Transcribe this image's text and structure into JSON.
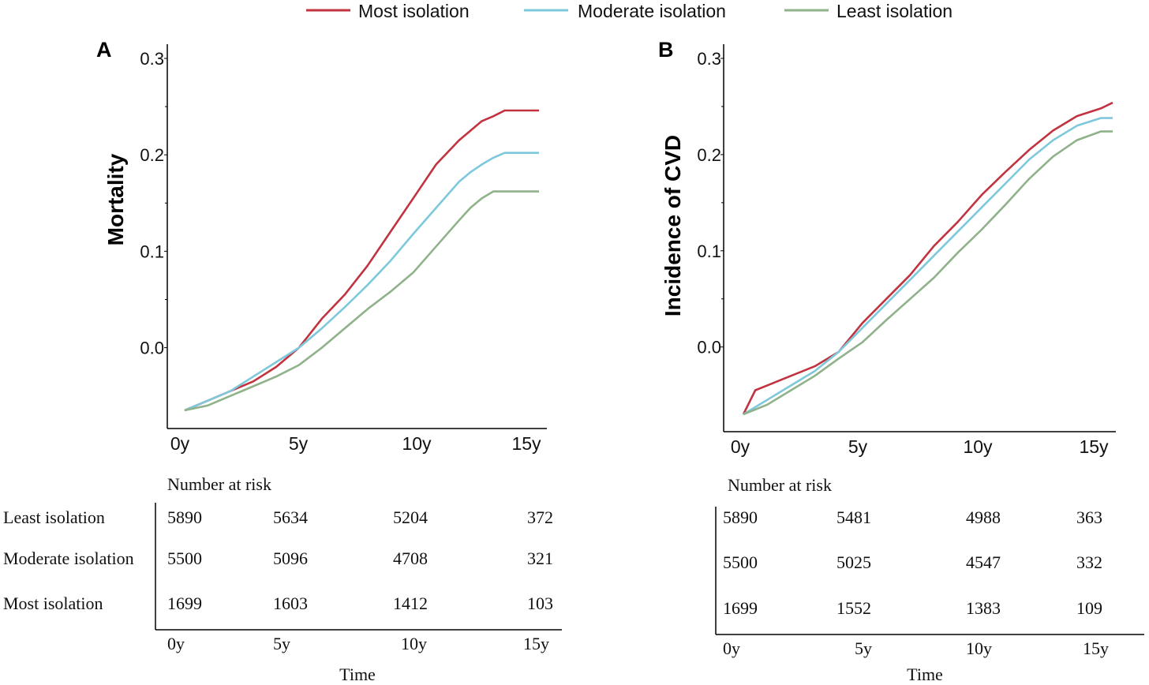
{
  "legend": {
    "items": [
      {
        "label": "Most isolation",
        "color": "#c0333f"
      },
      {
        "label": "Moderate isolation",
        "color": "#7ec8dc"
      },
      {
        "label": "Least isolation",
        "color": "#8fb28a"
      }
    ]
  },
  "chart_data": [
    {
      "type": "line",
      "panel_label": "A",
      "title": "",
      "xlabel": "",
      "ylabel": "Mortality",
      "x_tick_labels": [
        "0y",
        "5y",
        "10y",
        "15y"
      ],
      "y_tick_labels": [
        "0.0",
        "0.1",
        "0.2",
        "0.3"
      ],
      "xlim": [
        0,
        15.5
      ],
      "ylim": [
        -0.065,
        0.3
      ],
      "series": [
        {
          "name": "Most isolation",
          "color": "#c0333f",
          "x": [
            0,
            1,
            2,
            3,
            4,
            5,
            6,
            7,
            8,
            9,
            10,
            11,
            12,
            12.5,
            13,
            13.5,
            14,
            15.5
          ],
          "y": [
            -0.065,
            -0.055,
            -0.045,
            -0.035,
            -0.02,
            0.0,
            0.03,
            0.055,
            0.085,
            0.12,
            0.155,
            0.19,
            0.215,
            0.225,
            0.235,
            0.24,
            0.246,
            0.246
          ]
        },
        {
          "name": "Moderate isolation",
          "color": "#7ec8dc",
          "x": [
            0,
            1,
            2,
            3,
            4,
            5,
            6,
            7,
            8,
            9,
            10,
            11,
            12,
            12.5,
            13,
            13.5,
            14,
            15.5
          ],
          "y": [
            -0.065,
            -0.055,
            -0.045,
            -0.03,
            -0.015,
            0.0,
            0.02,
            0.042,
            0.065,
            0.09,
            0.118,
            0.145,
            0.172,
            0.182,
            0.19,
            0.197,
            0.202,
            0.202
          ]
        },
        {
          "name": "Least isolation",
          "color": "#8fb28a",
          "x": [
            0,
            1,
            2,
            3,
            4,
            5,
            6,
            7,
            8,
            9,
            10,
            11,
            12,
            12.5,
            13,
            13.5,
            15.5
          ],
          "y": [
            -0.065,
            -0.06,
            -0.05,
            -0.04,
            -0.03,
            -0.018,
            0.0,
            0.02,
            0.04,
            0.058,
            0.078,
            0.105,
            0.132,
            0.145,
            0.155,
            0.162,
            0.162
          ]
        }
      ],
      "risk_table": {
        "title": "Number at risk",
        "xlabel": "Time",
        "time_labels": [
          "0y",
          "5y",
          "10y",
          "15y"
        ],
        "rows": [
          {
            "group": "Least isolation",
            "values": [
              "5890",
              "5634",
              "5204",
              "372"
            ]
          },
          {
            "group": "Moderate isolation",
            "values": [
              "5500",
              "5096",
              "4708",
              "321"
            ]
          },
          {
            "group": "Most isolation",
            "values": [
              "1699",
              "1603",
              "1412",
              "103"
            ]
          }
        ]
      }
    },
    {
      "type": "line",
      "panel_label": "B",
      "title": "",
      "xlabel": "",
      "ylabel": "Incidence of CVD",
      "x_tick_labels": [
        "0y",
        "5y",
        "10y",
        "15y"
      ],
      "y_tick_labels": [
        "0.0",
        "0.1",
        "0.2",
        "0.3"
      ],
      "xlim": [
        0,
        15.5
      ],
      "ylim": [
        -0.07,
        0.3
      ],
      "series": [
        {
          "name": "Most isolation",
          "color": "#c0333f",
          "x": [
            0,
            0.5,
            1,
            2,
            3,
            4,
            5,
            6,
            7,
            8,
            9,
            10,
            11,
            12,
            13,
            14,
            15,
            15.5
          ],
          "y": [
            -0.07,
            -0.045,
            -0.04,
            -0.03,
            -0.02,
            -0.005,
            0.025,
            0.05,
            0.075,
            0.105,
            0.13,
            0.158,
            0.182,
            0.205,
            0.225,
            0.24,
            0.248,
            0.254
          ]
        },
        {
          "name": "Moderate isolation",
          "color": "#7ec8dc",
          "x": [
            0,
            1,
            2,
            3,
            4,
            5,
            6,
            7,
            8,
            9,
            10,
            11,
            12,
            13,
            14,
            15,
            15.5
          ],
          "y": [
            -0.07,
            -0.055,
            -0.04,
            -0.025,
            -0.005,
            0.02,
            0.045,
            0.07,
            0.095,
            0.12,
            0.145,
            0.17,
            0.195,
            0.215,
            0.23,
            0.238,
            0.238
          ]
        },
        {
          "name": "Least isolation",
          "color": "#8fb28a",
          "x": [
            0,
            1,
            2,
            3,
            4,
            5,
            6,
            7,
            8,
            9,
            10,
            11,
            12,
            13,
            14,
            15,
            15.5
          ],
          "y": [
            -0.07,
            -0.06,
            -0.045,
            -0.03,
            -0.012,
            0.005,
            0.028,
            0.05,
            0.072,
            0.098,
            0.122,
            0.148,
            0.175,
            0.198,
            0.215,
            0.224,
            0.224
          ]
        }
      ],
      "risk_table": {
        "title": "Number at risk",
        "xlabel": "Time",
        "time_labels": [
          "0y",
          "5y",
          "10y",
          "15y"
        ],
        "rows": [
          {
            "group": "Least isolation",
            "values": [
              "5890",
              "5481",
              "4988",
              "363"
            ]
          },
          {
            "group": "Moderate isolation",
            "values": [
              "5500",
              "5025",
              "4547",
              "332"
            ]
          },
          {
            "group": "Most isolation",
            "values": [
              "1699",
              "1552",
              "1383",
              "109"
            ]
          }
        ]
      }
    }
  ]
}
